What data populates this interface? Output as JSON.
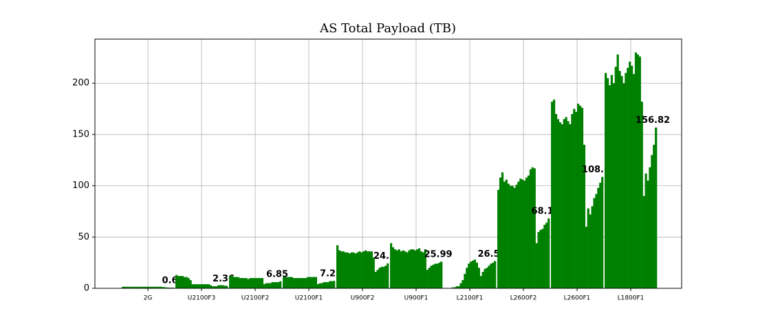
{
  "chart_data": {
    "type": "grouped-bar",
    "title": "AS Total Payload (TB)",
    "categories": [
      "2G",
      "U2100F3",
      "U2100F2",
      "U2100F1",
      "U900F2",
      "U900F1",
      "L2100F1",
      "L2600F2",
      "L2600F1",
      "L1800F1"
    ],
    "values": [
      [
        1.5,
        1.5,
        1.5,
        1.5,
        1.5,
        1.5,
        1.5,
        1.5,
        1.5,
        1.5,
        1.5,
        1.5,
        1.5,
        1.5,
        1.5,
        1.5,
        1.5,
        1.5,
        1.5,
        1.5,
        1.2,
        1,
        0.8,
        0.7,
        0.6,
        0.6
      ],
      [
        13,
        12,
        12,
        12,
        11,
        11,
        10,
        8,
        4,
        4,
        4,
        4,
        4,
        4,
        4,
        4,
        4,
        3,
        2,
        2,
        2,
        3,
        3,
        3,
        2.5,
        2.36
      ],
      [
        12,
        12,
        11,
        11,
        11,
        10,
        10,
        10,
        10,
        9,
        10,
        10,
        10,
        10,
        10,
        10,
        10,
        4,
        5,
        5,
        5,
        6,
        6,
        6,
        6,
        6.85
      ],
      [
        11,
        11,
        11,
        11,
        11,
        10,
        10,
        10,
        10,
        10,
        10,
        10,
        11,
        11,
        11,
        11,
        11,
        4,
        5,
        5,
        6,
        6,
        6,
        7,
        7,
        7.23
      ],
      [
        42,
        37,
        36,
        36,
        35,
        35,
        34,
        35,
        35,
        34,
        35,
        36,
        35,
        36,
        37,
        36,
        36,
        36,
        30,
        16,
        18,
        20,
        21,
        21,
        22,
        24.3
      ],
      [
        44,
        40,
        38,
        37,
        38,
        36,
        37,
        36,
        35,
        37,
        38,
        38,
        37,
        38,
        39,
        36,
        35,
        38,
        18,
        20,
        22,
        23,
        24,
        24,
        25,
        25.99
      ],
      [
        0,
        0,
        0,
        0,
        1,
        1,
        2,
        2,
        5,
        8,
        14,
        20,
        24,
        26,
        27,
        28,
        25,
        20,
        12,
        16,
        19,
        20,
        22,
        24,
        25,
        26.57
      ],
      [
        96,
        108,
        113,
        104,
        106,
        102,
        100,
        100,
        98,
        101,
        104,
        107,
        106,
        105,
        108,
        110,
        116,
        118,
        117,
        44,
        55,
        57,
        58,
        62,
        64,
        68.13
      ],
      [
        182,
        184,
        170,
        165,
        162,
        160,
        165,
        167,
        163,
        160,
        170,
        175,
        172,
        180,
        178,
        176,
        140,
        60,
        78,
        72,
        80,
        88,
        92,
        98,
        103,
        108.67
      ],
      [
        210,
        205,
        198,
        208,
        200,
        216,
        228,
        212,
        207,
        200,
        210,
        215,
        221,
        217,
        209,
        230,
        228,
        226,
        182,
        90,
        112,
        105,
        118,
        130,
        140,
        156.82
      ]
    ],
    "annotations": [
      0.6,
      2.36,
      6.85,
      7.23,
      24.3,
      25.99,
      26.57,
      68.13,
      108.67,
      156.82
    ],
    "color": "#008000",
    "ylim": [
      0,
      243
    ],
    "yticks": [
      0,
      50,
      100,
      150,
      200
    ],
    "grid": true
  }
}
